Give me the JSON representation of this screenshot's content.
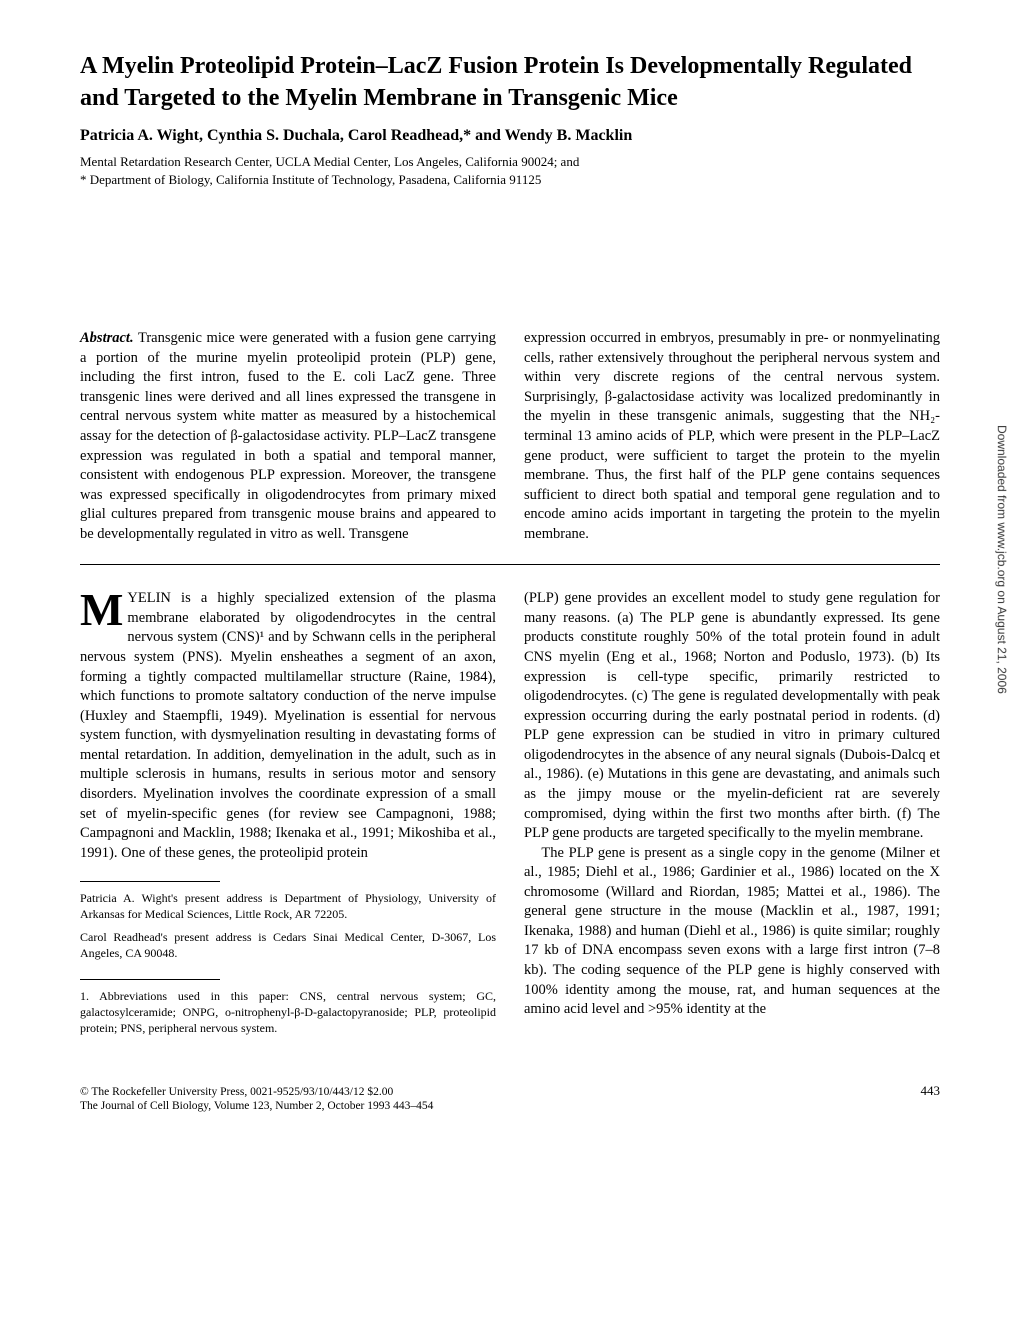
{
  "title": "A Myelin Proteolipid Protein–LacZ Fusion Protein Is Developmentally Regulated and Targeted to the Myelin Membrane in Transgenic Mice",
  "authors": "Patricia A. Wight, Cynthia S. Duchala, Carol Readhead,* and Wendy B. Macklin",
  "affiliation1": "Mental Retardation Research Center, UCLA Medial Center, Los Angeles, California 90024; and",
  "affiliation2": "* Department of Biology, California Institute of Technology, Pasadena, California 91125",
  "abstract_label": "Abstract.",
  "abstract_col1": " Transgenic mice were generated with a fusion gene carrying a portion of the murine myelin proteolipid protein (PLP) gene, including the first intron, fused to the E. coli LacZ gene. Three transgenic lines were derived and all lines expressed the transgene in central nervous system white matter as measured by a histochemical assay for the detection of β-galactosidase activity. PLP–LacZ transgene expression was regulated in both a spatial and temporal manner, consistent with endogenous PLP expression. Moreover, the transgene was expressed specifically in oligodendrocytes from primary mixed glial cultures prepared from transgenic mouse brains and appeared to be developmentally regulated in vitro as well. Transgene",
  "abstract_col2": "expression occurred in embryos, presumably in pre- or nonmyelinating cells, rather extensively throughout the peripheral nervous system and within very discrete regions of the central nervous system. Surprisingly, β-galactosidase activity was localized predominantly in the myelin in these transgenic animals, suggesting that the NH₂-terminal 13 amino acids of PLP, which were present in the PLP–LacZ gene product, were sufficient to target the protein to the myelin membrane. Thus, the first half of the PLP gene contains sequences sufficient to direct both spatial and temporal gene regulation and to encode amino acids important in targeting the protein to the myelin membrane.",
  "body_col1_dropcap": "M",
  "body_col1": "YELIN is a highly specialized extension of the plasma membrane elaborated by oligodendrocytes in the central nervous system (CNS)¹ and by Schwann cells in the peripheral nervous system (PNS). Myelin ensheathes a segment of an axon, forming a tightly compacted multilamellar structure (Raine, 1984), which functions to promote saltatory conduction of the nerve impulse (Huxley and Staempfli, 1949). Myelination is essential for nervous system function, with dysmyelination resulting in devastating forms of mental retardation. In addition, demyelination in the adult, such as in multiple sclerosis in humans, results in serious motor and sensory disorders. Myelination involves the coordinate expression of a small set of myelin-specific genes (for review see Campagnoni, 1988; Campagnoni and Macklin, 1988; Ikenaka et al., 1991; Mikoshiba et al., 1991). One of these genes, the proteolipid protein",
  "body_col2": "(PLP) gene provides an excellent model to study gene regulation for many reasons. (a) The PLP gene is abundantly expressed. Its gene products constitute roughly 50% of the total protein found in adult CNS myelin (Eng et al., 1968; Norton and Poduslo, 1973). (b) Its expression is cell-type specific, primarily restricted to oligodendrocytes. (c) The gene is regulated developmentally with peak expression occurring during the early postnatal period in rodents. (d) PLP gene expression can be studied in vitro in primary cultured oligodendrocytes in the absence of any neural signals (Dubois-Dalcq et al., 1986). (e) Mutations in this gene are devastating, and animals such as the jimpy mouse or the myelin-deficient rat are severely compromised, dying within the first two months after birth. (f) The PLP gene products are targeted specifically to the myelin membrane.",
  "body_col2_p2": "The PLP gene is present as a single copy in the genome (Milner et al., 1985; Diehl et al., 1986; Gardinier et al., 1986) located on the X chromosome (Willard and Riordan, 1985; Mattei et al., 1986). The general gene structure in the mouse (Macklin et al., 1987, 1991; Ikenaka, 1988) and human (Diehl et al., 1986) is quite similar; roughly 17 kb of DNA encompass seven exons with a large first intron (7–8 kb). The coding sequence of the PLP gene is highly conserved with 100% identity among the mouse, rat, and human sequences at the amino acid level and >95% identity at the",
  "footnote1": "Patricia A. Wight's present address is Department of Physiology, University of Arkansas for Medical Sciences, Little Rock, AR 72205.",
  "footnote2": "Carol Readhead's present address is Cedars Sinai Medical Center, D-3067, Los Angeles, CA 90048.",
  "footnote3": "1. Abbreviations used in this paper: CNS, central nervous system; GC, galactosylceramide; ONPG, o-nitrophenyl-β-D-galactopyranoside; PLP, proteolipid protein; PNS, peripheral nervous system.",
  "footer_line1": "© The Rockefeller University Press, 0021-9525/93/10/443/12 $2.00",
  "footer_line2": "The Journal of Cell Biology, Volume 123, Number 2, October 1993 443–454",
  "page_number": "443",
  "side_download": "Downloaded from www.jcb.org on August 21, 2006"
}
